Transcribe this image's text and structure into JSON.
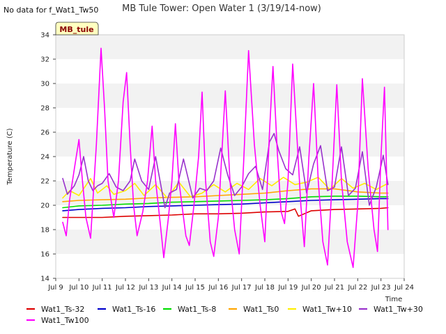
{
  "chart_data": {
    "type": "line",
    "title": "MB Tule Tower: Open Water 1 (3/19/14-now)",
    "no_data_note": "No data for f_Wat1_Tw50",
    "site_tag": "MB_tule",
    "xlabel": "Time",
    "ylabel": "Temperature (C)",
    "xlim": [
      9,
      24
    ],
    "ylim": [
      14,
      34
    ],
    "x_ticks": [
      {
        "value": 9,
        "label": "Jul 9"
      },
      {
        "value": 10,
        "label": "Jul 10"
      },
      {
        "value": 11,
        "label": "Jul 11"
      },
      {
        "value": 12,
        "label": "Jul 12"
      },
      {
        "value": 13,
        "label": "Jul 13"
      },
      {
        "value": 14,
        "label": "Jul 14"
      },
      {
        "value": 15,
        "label": "Jul 15"
      },
      {
        "value": 16,
        "label": "Jul 16"
      },
      {
        "value": 17,
        "label": "Jul 17"
      },
      {
        "value": 18,
        "label": "Jul 18"
      },
      {
        "value": 19,
        "label": "Jul 19"
      },
      {
        "value": 20,
        "label": "Jul 20"
      },
      {
        "value": 21,
        "label": "Jul 21"
      },
      {
        "value": 22,
        "label": "Jul 22"
      },
      {
        "value": 23,
        "label": "Jul 23"
      },
      {
        "value": 24,
        "label": "Jul 24"
      }
    ],
    "y_ticks": [
      {
        "value": 14,
        "label": "14"
      },
      {
        "value": 16,
        "label": "16"
      },
      {
        "value": 18,
        "label": "18"
      },
      {
        "value": 20,
        "label": "20"
      },
      {
        "value": 22,
        "label": "22"
      },
      {
        "value": 24,
        "label": "24"
      },
      {
        "value": 26,
        "label": "26"
      },
      {
        "value": 28,
        "label": "28"
      },
      {
        "value": 30,
        "label": "30"
      },
      {
        "value": 32,
        "label": "32"
      },
      {
        "value": 34,
        "label": "34"
      }
    ],
    "series": [
      {
        "name": "Wat1_Ts-32",
        "color": "#dd0000",
        "x": [
          9.3,
          10,
          11,
          12,
          13,
          14,
          15,
          16,
          17,
          18,
          19,
          19.3,
          19.45,
          20,
          21,
          22,
          23,
          23.3
        ],
        "y": [
          19.0,
          19.0,
          19.0,
          19.1,
          19.15,
          19.2,
          19.3,
          19.3,
          19.35,
          19.45,
          19.5,
          19.7,
          19.1,
          19.55,
          19.65,
          19.7,
          19.75,
          19.8
        ]
      },
      {
        "name": "Wat1_Ts-16",
        "color": "#0000cc",
        "x": [
          9.3,
          10,
          11,
          12,
          13,
          14,
          15,
          16,
          17,
          18,
          19,
          20,
          21,
          22,
          23,
          23.3
        ],
        "y": [
          19.55,
          19.65,
          19.75,
          19.8,
          19.9,
          19.95,
          20.0,
          20.05,
          20.1,
          20.2,
          20.3,
          20.4,
          20.45,
          20.5,
          20.55,
          20.55
        ]
      },
      {
        "name": "Wat1_Ts-8",
        "color": "#00dd00",
        "x": [
          9.3,
          10,
          11,
          12,
          13,
          14,
          15,
          16,
          17,
          18,
          19,
          20,
          21,
          22,
          23,
          23.3
        ],
        "y": [
          19.8,
          19.95,
          20.0,
          20.1,
          20.15,
          20.25,
          20.3,
          20.35,
          20.4,
          20.45,
          20.55,
          20.7,
          20.75,
          20.75,
          20.7,
          20.7
        ]
      },
      {
        "name": "Wat1_Ts0",
        "color": "#ffa500",
        "x": [
          9.3,
          10,
          11,
          12,
          13,
          14,
          15,
          16,
          17,
          18,
          19,
          20,
          21,
          22,
          23,
          23.3
        ],
        "y": [
          20.3,
          20.4,
          20.45,
          20.5,
          20.6,
          20.65,
          20.7,
          20.8,
          20.9,
          21.0,
          21.2,
          21.35,
          21.35,
          21.1,
          21.0,
          21.0
        ]
      },
      {
        "name": "Wat1_Tw+10",
        "color": "#ffee00",
        "x": [
          9.3,
          9.6,
          10.0,
          10.5,
          10.8,
          11.2,
          11.5,
          12.0,
          12.4,
          12.8,
          13.3,
          13.8,
          14.3,
          14.8,
          15.3,
          15.8,
          16.3,
          16.8,
          17.3,
          17.8,
          18.3,
          18.8,
          19.3,
          19.8,
          20.3,
          20.8,
          21.3,
          21.8,
          22.3,
          22.8,
          23.3
        ],
        "y": [
          20.6,
          21.2,
          20.8,
          22.2,
          21.0,
          21.6,
          20.9,
          21.2,
          21.8,
          20.8,
          21.7,
          20.6,
          21.9,
          20.7,
          21.0,
          21.7,
          21.1,
          21.8,
          21.3,
          22.2,
          21.6,
          22.3,
          21.7,
          21.9,
          22.3,
          21.3,
          22.2,
          21.4,
          21.8,
          21.3,
          21.8
        ]
      },
      {
        "name": "Wat1_Tw+30",
        "color": "#9932cc",
        "x": [
          9.3,
          9.5,
          9.8,
          10.0,
          10.2,
          10.4,
          10.6,
          10.8,
          11.0,
          11.3,
          11.6,
          11.9,
          12.2,
          12.4,
          12.7,
          13.0,
          13.3,
          13.7,
          13.9,
          14.2,
          14.5,
          14.9,
          15.2,
          15.5,
          15.8,
          16.1,
          16.4,
          16.7,
          17.0,
          17.3,
          17.6,
          17.9,
          18.2,
          18.4,
          18.6,
          18.9,
          19.2,
          19.5,
          19.8,
          20.1,
          20.4,
          20.7,
          21.0,
          21.3,
          21.6,
          21.9,
          22.2,
          22.5,
          22.8,
          23.1,
          23.3
        ],
        "y": [
          22.2,
          20.9,
          21.6,
          22.5,
          24.0,
          22.0,
          21.2,
          21.6,
          21.8,
          22.6,
          21.5,
          21.2,
          22.0,
          23.8,
          22.0,
          21.3,
          24.0,
          19.8,
          21.0,
          21.3,
          23.8,
          20.6,
          21.4,
          21.2,
          22.0,
          24.7,
          22.5,
          20.8,
          21.5,
          22.6,
          23.2,
          21.3,
          25.2,
          25.9,
          24.5,
          23.0,
          22.5,
          24.8,
          21.0,
          23.4,
          24.9,
          21.2,
          21.5,
          24.8,
          20.8,
          21.4,
          24.4,
          20.0,
          21.5,
          24.1,
          21.7
        ]
      },
      {
        "name": "Wat1_Tw100",
        "color": "#ff00ff",
        "x": [
          9.3,
          9.45,
          9.6,
          9.8,
          10.0,
          10.15,
          10.3,
          10.5,
          10.75,
          10.95,
          11.1,
          11.25,
          11.5,
          11.7,
          11.9,
          12.05,
          12.2,
          12.35,
          12.5,
          12.75,
          12.95,
          13.15,
          13.3,
          13.5,
          13.65,
          13.85,
          14.0,
          14.15,
          14.3,
          14.6,
          14.75,
          14.95,
          15.15,
          15.3,
          15.45,
          15.65,
          15.8,
          16.0,
          16.3,
          16.5,
          16.7,
          16.9,
          17.1,
          17.3,
          17.55,
          17.8,
          18.0,
          18.2,
          18.35,
          18.55,
          18.7,
          18.85,
          19.0,
          19.2,
          19.4,
          19.55,
          19.7,
          19.9,
          20.1,
          20.3,
          20.5,
          20.7,
          20.9,
          21.1,
          21.3,
          21.55,
          21.8,
          22.0,
          22.2,
          22.45,
          22.7,
          22.85,
          23.0,
          23.15,
          23.3
        ],
        "y": [
          18.6,
          17.5,
          20.5,
          23.0,
          25.4,
          22.0,
          19.0,
          17.3,
          25.0,
          32.9,
          28.0,
          22.0,
          19.0,
          22.0,
          28.5,
          30.9,
          25.0,
          20.0,
          17.5,
          19.5,
          22.0,
          26.5,
          22.0,
          18.5,
          15.7,
          19.0,
          22.0,
          26.7,
          22.0,
          17.5,
          16.7,
          20.0,
          24.0,
          29.3,
          22.0,
          17.0,
          15.8,
          19.0,
          29.4,
          22.0,
          18.0,
          16.0,
          24.0,
          32.7,
          25.0,
          20.0,
          17.0,
          26.0,
          31.4,
          24.0,
          19.5,
          18.5,
          22.0,
          31.6,
          25.0,
          20.0,
          16.6,
          24.0,
          30.0,
          22.0,
          17.0,
          15.1,
          22.0,
          29.9,
          22.0,
          17.0,
          14.9,
          20.0,
          30.4,
          23.0,
          18.0,
          16.2,
          24.0,
          29.7,
          18.0
        ]
      }
    ]
  }
}
